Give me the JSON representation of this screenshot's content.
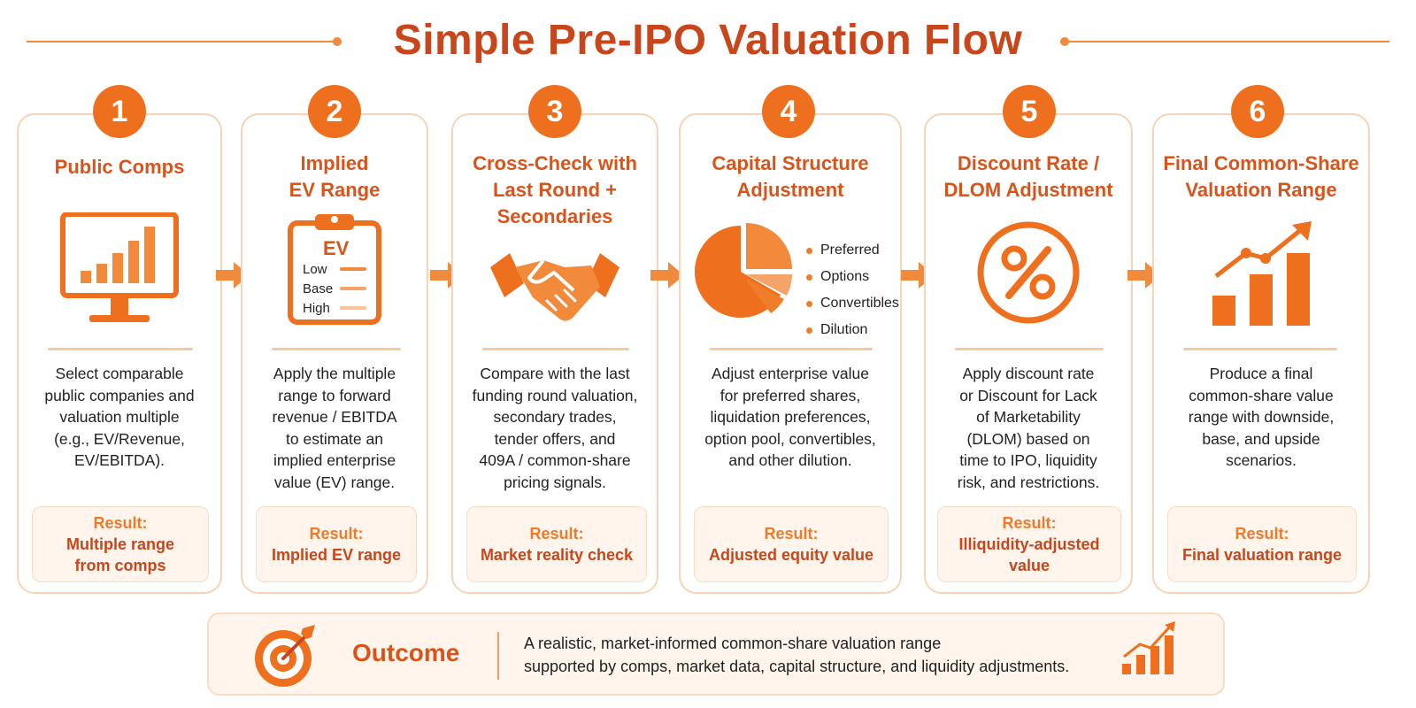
{
  "title": "Simple Pre-IPO Valuation Flow",
  "colors": {
    "accent": "#ee6f1d",
    "title": "#c8461b",
    "border": "#f8d3b5",
    "result_bg": "#fff5ec"
  },
  "steps": [
    {
      "number": "1",
      "title_lines": [
        "Public Comps"
      ],
      "icon": "bar-chart-monitor-icon",
      "desc_lines": [
        "Select comparable",
        "public companies and",
        "valuation multiple",
        "(e.g., EV/Revenue,",
        "EV/EBITDA)."
      ],
      "result_label": "Result:",
      "result_lines": [
        "Multiple range",
        "from comps"
      ]
    },
    {
      "number": "2",
      "title_lines": [
        "Implied",
        "EV Range"
      ],
      "icon": "clipboard-icon",
      "clipboard": {
        "heading": "EV",
        "rows": [
          "Low",
          "Base",
          "High"
        ]
      },
      "desc_lines": [
        "Apply the multiple",
        "range to forward",
        "revenue / EBITDA",
        "to estimate an",
        "implied enterprise",
        "value (EV) range."
      ],
      "result_label": "Result:",
      "result_lines": [
        "Implied EV range"
      ]
    },
    {
      "number": "3",
      "title_lines": [
        "Cross-Check with",
        "Last Round +",
        "Secondaries"
      ],
      "icon": "handshake-icon",
      "desc_lines": [
        "Compare with the last",
        "funding round valuation,",
        "secondary trades,",
        "tender offers, and",
        "409A / common-share",
        "pricing signals."
      ],
      "result_label": "Result:",
      "result_lines": [
        "Market reality check"
      ]
    },
    {
      "number": "4",
      "title_lines": [
        "Capital Structure",
        "Adjustment"
      ],
      "icon": "pie-chart-icon",
      "legend": [
        "Preferred",
        "Options",
        "Convertibles",
        "Dilution"
      ],
      "desc_lines": [
        "Adjust enterprise value",
        "for preferred shares,",
        "liquidation preferences,",
        "option pool, convertibles,",
        "and other dilution."
      ],
      "result_label": "Result:",
      "result_lines": [
        "Adjusted equity value"
      ]
    },
    {
      "number": "5",
      "title_lines": [
        "Discount Rate /",
        "DLOM Adjustment"
      ],
      "icon": "percent-icon",
      "desc_lines": [
        "Apply discount rate",
        "or Discount for Lack",
        "of Marketability",
        "(DLOM) based on",
        "time to IPO, liquidity",
        "risk, and restrictions."
      ],
      "result_label": "Result:",
      "result_lines": [
        "Illiquidity-adjusted",
        "value"
      ]
    },
    {
      "number": "6",
      "title_lines": [
        "Final Common-Share",
        "Valuation Range"
      ],
      "icon": "growth-chart-icon",
      "desc_lines": [
        "Produce a final",
        "common-share value",
        "range with downside,",
        "base, and upside",
        "scenarios."
      ],
      "result_label": "Result:",
      "result_lines": [
        "Final valuation range"
      ]
    }
  ],
  "outcome": {
    "title": "Outcome",
    "lines": [
      "A realistic,  market-informed common-share valuation range",
      "supported by comps, market data, capital structure, and liquidity adjustments."
    ],
    "icon": "target-icon",
    "trend_icon": "trend-chart-icon"
  }
}
